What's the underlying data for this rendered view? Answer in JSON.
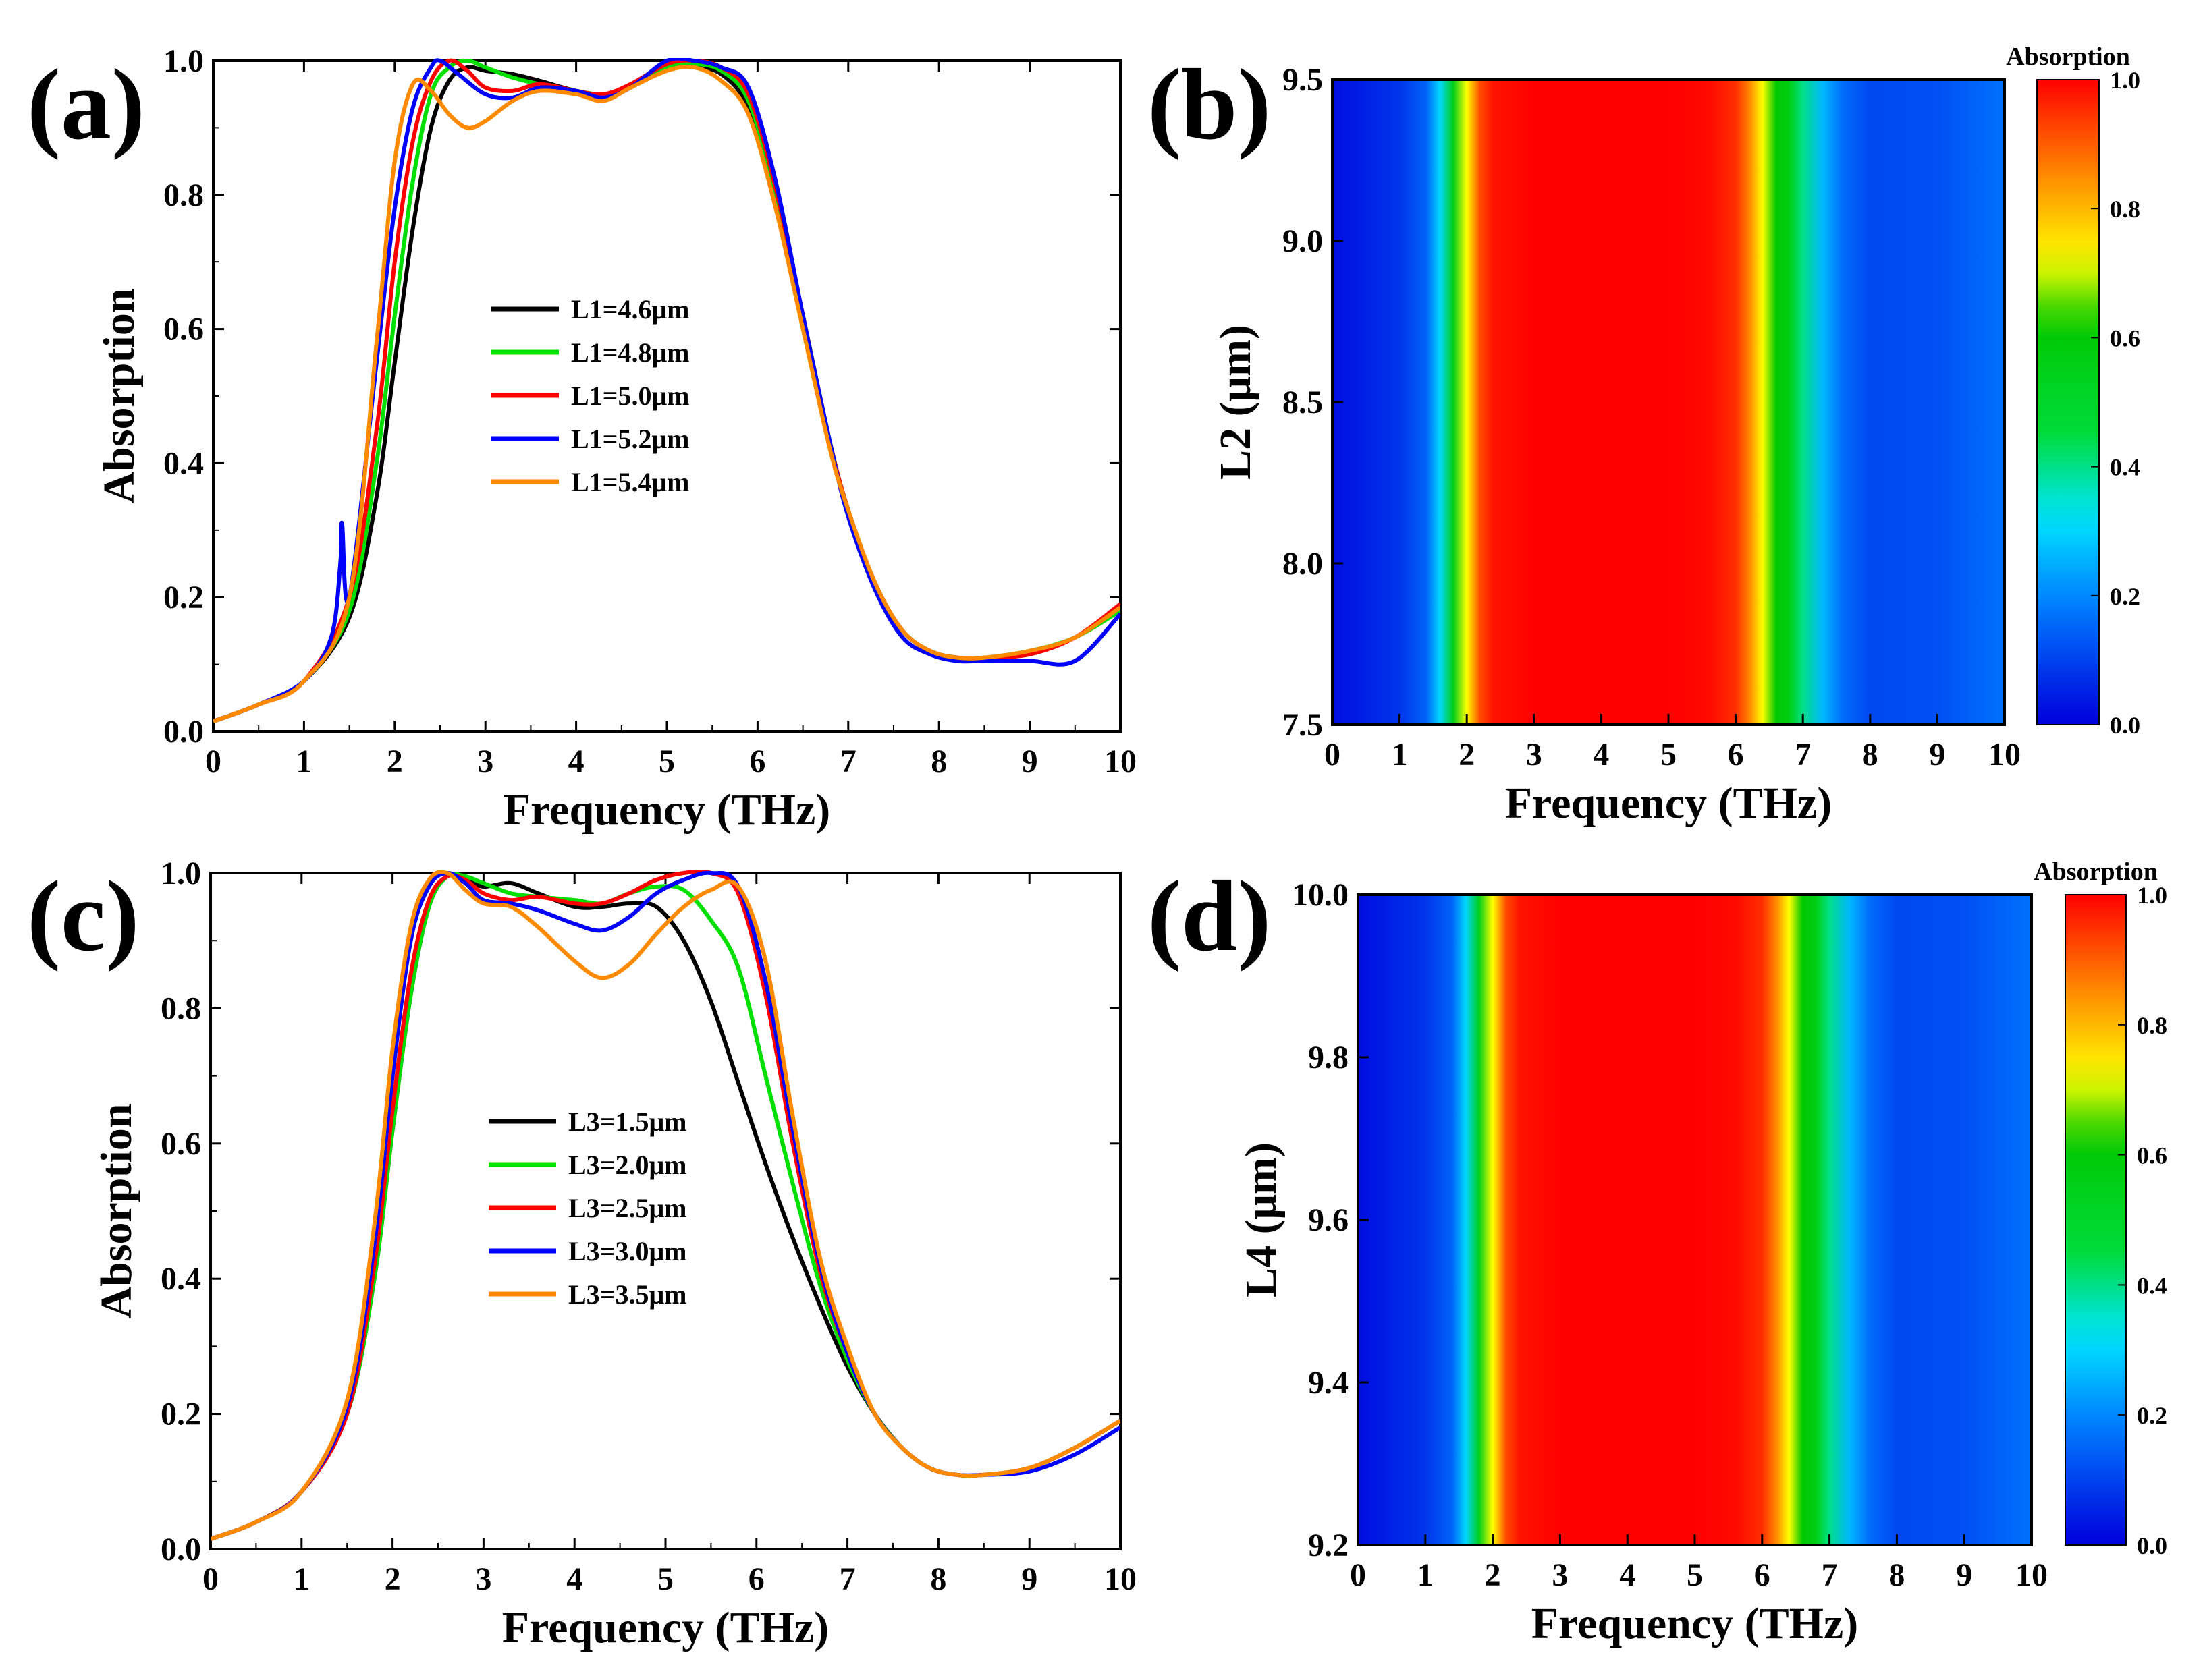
{
  "chart_data": [
    {
      "panel": "(a)",
      "type": "line",
      "xlabel": "Frequency (THz)",
      "ylabel": "Absorption",
      "xlim": [
        0,
        10
      ],
      "ylim": [
        0,
        1
      ],
      "xticks": [
        "0",
        "1",
        "2",
        "3",
        "4",
        "5",
        "6",
        "7",
        "8",
        "9",
        "10"
      ],
      "yticks": [
        "0.0",
        "0.2",
        "0.4",
        "0.6",
        "0.8",
        "1.0"
      ],
      "series": [
        {
          "name": "L1=4.6μm",
          "color": "#000000",
          "x": [
            0,
            0.5,
            1,
            1.5,
            1.8,
            2,
            2.2,
            2.4,
            2.6,
            2.8,
            3,
            3.3,
            3.6,
            4,
            4.3,
            4.6,
            5,
            5.3,
            5.6,
            5.9,
            6.2,
            6.5,
            6.8,
            7,
            7.3,
            7.6,
            7.9,
            8.2,
            8.5,
            9,
            9.5,
            10
          ],
          "y": [
            0.015,
            0.04,
            0.075,
            0.17,
            0.35,
            0.55,
            0.75,
            0.9,
            0.97,
            0.99,
            0.985,
            0.98,
            0.97,
            0.955,
            0.95,
            0.96,
            0.99,
            0.99,
            0.98,
            0.93,
            0.8,
            0.62,
            0.43,
            0.33,
            0.22,
            0.15,
            0.12,
            0.11,
            0.11,
            0.115,
            0.14,
            0.18
          ]
        },
        {
          "name": "L1=4.8μm",
          "color": "#00e000",
          "x": [
            0,
            0.5,
            1,
            1.5,
            1.8,
            2,
            2.2,
            2.4,
            2.6,
            2.8,
            3,
            3.3,
            3.6,
            4,
            4.3,
            4.6,
            5,
            5.3,
            5.6,
            5.9,
            6.2,
            6.5,
            6.8,
            7,
            7.3,
            7.6,
            7.9,
            8.2,
            8.5,
            9,
            9.5,
            10
          ],
          "y": [
            0.015,
            0.04,
            0.075,
            0.18,
            0.4,
            0.62,
            0.82,
            0.95,
            0.99,
            1.0,
            0.99,
            0.975,
            0.965,
            0.955,
            0.95,
            0.96,
            0.99,
            0.995,
            0.985,
            0.94,
            0.8,
            0.62,
            0.43,
            0.33,
            0.22,
            0.15,
            0.12,
            0.11,
            0.11,
            0.12,
            0.14,
            0.18
          ]
        },
        {
          "name": "L1=5.0μm",
          "color": "#ff0000",
          "x": [
            0,
            0.5,
            1,
            1.5,
            1.8,
            2,
            2.2,
            2.4,
            2.6,
            2.8,
            3,
            3.3,
            3.6,
            4,
            4.3,
            4.6,
            5,
            5.3,
            5.6,
            5.9,
            6.2,
            6.5,
            6.8,
            7,
            7.3,
            7.6,
            7.9,
            8.2,
            8.5,
            9,
            9.5,
            10
          ],
          "y": [
            0.015,
            0.04,
            0.075,
            0.2,
            0.45,
            0.7,
            0.88,
            0.97,
            1.0,
            0.985,
            0.96,
            0.955,
            0.965,
            0.955,
            0.95,
            0.965,
            0.995,
            1.0,
            0.99,
            0.95,
            0.81,
            0.62,
            0.43,
            0.33,
            0.22,
            0.15,
            0.12,
            0.11,
            0.11,
            0.115,
            0.14,
            0.19
          ]
        },
        {
          "name": "L1=5.2μm",
          "color": "#0000ff",
          "x": [
            0,
            0.5,
            1,
            1.3,
            1.4,
            1.42,
            1.5,
            1.8,
            2,
            2.2,
            2.4,
            2.5,
            2.7,
            3,
            3.3,
            3.6,
            4,
            4.3,
            4.6,
            5,
            5.3,
            5.6,
            5.9,
            6.2,
            6.5,
            6.8,
            7,
            7.3,
            7.6,
            7.9,
            8.2,
            8.5,
            9,
            9.5,
            10
          ],
          "y": [
            0.015,
            0.04,
            0.075,
            0.14,
            0.25,
            0.31,
            0.2,
            0.55,
            0.78,
            0.93,
            0.99,
            1.0,
            0.98,
            0.95,
            0.945,
            0.96,
            0.955,
            0.945,
            0.96,
            1.0,
            1.0,
            0.99,
            0.96,
            0.82,
            0.62,
            0.43,
            0.32,
            0.21,
            0.14,
            0.115,
            0.105,
            0.105,
            0.105,
            0.105,
            0.175
          ]
        },
        {
          "name": "L1=5.4μm",
          "color": "#ff8a00",
          "x": [
            0,
            0.5,
            1,
            1.5,
            1.8,
            2,
            2.2,
            2.4,
            2.6,
            2.8,
            3,
            3.3,
            3.6,
            4,
            4.3,
            4.6,
            5,
            5.3,
            5.6,
            5.9,
            6.2,
            6.5,
            6.8,
            7,
            7.3,
            7.6,
            7.9,
            8.2,
            8.5,
            9,
            9.5,
            10
          ],
          "y": [
            0.015,
            0.04,
            0.075,
            0.2,
            0.58,
            0.85,
            0.965,
            0.955,
            0.92,
            0.9,
            0.91,
            0.94,
            0.955,
            0.95,
            0.94,
            0.96,
            0.985,
            0.99,
            0.97,
            0.92,
            0.78,
            0.6,
            0.42,
            0.33,
            0.22,
            0.15,
            0.12,
            0.11,
            0.11,
            0.12,
            0.14,
            0.185
          ]
        }
      ],
      "legend_position": "center"
    },
    {
      "panel": "(b)",
      "type": "heatmap",
      "xlabel": "Frequency (THz)",
      "ylabel": "L2 (μm)",
      "xlim": [
        0,
        10
      ],
      "ylim": [
        7.5,
        9.5
      ],
      "xticks": [
        "0",
        "1",
        "2",
        "3",
        "4",
        "5",
        "6",
        "7",
        "8",
        "9",
        "10"
      ],
      "yticks": [
        "7.5",
        "8.0",
        "8.5",
        "9.0",
        "9.5"
      ],
      "profile_x": [
        0,
        0.5,
        1,
        1.4,
        1.6,
        1.8,
        2.0,
        2.2,
        2.4,
        3,
        4,
        5,
        5.6,
        6.0,
        6.2,
        6.4,
        6.6,
        6.8,
        7,
        7.3,
        7.6,
        8,
        9,
        10
      ],
      "profile_absorption": [
        0.02,
        0.05,
        0.08,
        0.15,
        0.3,
        0.55,
        0.72,
        0.92,
        0.98,
        1.0,
        1.0,
        1.0,
        0.99,
        0.95,
        0.86,
        0.72,
        0.62,
        0.56,
        0.4,
        0.26,
        0.16,
        0.11,
        0.12,
        0.17
      ],
      "colorbar": {
        "title": "Absorption",
        "range": [
          0,
          1
        ],
        "ticks": [
          "0.0",
          "0.2",
          "0.4",
          "0.6",
          "0.8",
          "1.0"
        ]
      }
    },
    {
      "panel": "(c)",
      "type": "line",
      "xlabel": "Frequency (THz)",
      "ylabel": "Absorption",
      "xlim": [
        0,
        10
      ],
      "ylim": [
        0,
        1
      ],
      "xticks": [
        "0",
        "1",
        "2",
        "3",
        "4",
        "5",
        "6",
        "7",
        "8",
        "9",
        "10"
      ],
      "yticks": [
        "0.0",
        "0.2",
        "0.4",
        "0.6",
        "0.8",
        "1.0"
      ],
      "series": [
        {
          "name": "L3=1.5μm",
          "color": "#000000",
          "x": [
            0,
            0.5,
            1,
            1.5,
            1.8,
            2,
            2.2,
            2.4,
            2.6,
            2.8,
            3,
            3.3,
            3.6,
            4,
            4.3,
            4.6,
            4.9,
            5.2,
            5.5,
            5.8,
            6.1,
            6.4,
            6.7,
            7,
            7.3,
            7.6,
            7.9,
            8.2,
            8.5,
            9,
            9.5,
            10
          ],
          "y": [
            0.015,
            0.04,
            0.085,
            0.2,
            0.4,
            0.62,
            0.82,
            0.95,
            0.995,
            0.99,
            0.98,
            0.985,
            0.97,
            0.95,
            0.95,
            0.955,
            0.95,
            0.9,
            0.81,
            0.69,
            0.57,
            0.46,
            0.36,
            0.27,
            0.2,
            0.15,
            0.12,
            0.11,
            0.11,
            0.12,
            0.15,
            0.19
          ]
        },
        {
          "name": "L3=2.0μm",
          "color": "#00e000",
          "x": [
            0,
            0.5,
            1,
            1.5,
            1.8,
            2,
            2.2,
            2.4,
            2.6,
            2.8,
            3,
            3.3,
            3.6,
            4,
            4.3,
            4.6,
            4.9,
            5.2,
            5.5,
            5.8,
            6.1,
            6.4,
            6.7,
            7,
            7.3,
            7.6,
            7.9,
            8.2,
            8.5,
            9,
            9.5,
            10
          ],
          "y": [
            0.015,
            0.04,
            0.085,
            0.2,
            0.4,
            0.62,
            0.82,
            0.95,
            0.995,
            0.995,
            0.985,
            0.97,
            0.965,
            0.96,
            0.955,
            0.97,
            0.98,
            0.975,
            0.93,
            0.86,
            0.7,
            0.54,
            0.39,
            0.28,
            0.2,
            0.15,
            0.12,
            0.11,
            0.11,
            0.12,
            0.15,
            0.19
          ]
        },
        {
          "name": "L3=2.5μm",
          "color": "#ff0000",
          "x": [
            0,
            0.5,
            1,
            1.5,
            1.8,
            2,
            2.2,
            2.4,
            2.6,
            2.8,
            3,
            3.3,
            3.6,
            4,
            4.3,
            4.6,
            4.9,
            5.2,
            5.5,
            5.8,
            6.1,
            6.4,
            6.7,
            7,
            7.3,
            7.6,
            7.9,
            8.2,
            8.5,
            9,
            9.5,
            10
          ],
          "y": [
            0.015,
            0.04,
            0.085,
            0.2,
            0.42,
            0.65,
            0.85,
            0.96,
            0.995,
            0.99,
            0.97,
            0.96,
            0.965,
            0.955,
            0.955,
            0.97,
            0.99,
            1.0,
            1.0,
            0.97,
            0.82,
            0.6,
            0.41,
            0.29,
            0.2,
            0.15,
            0.12,
            0.11,
            0.11,
            0.12,
            0.15,
            0.19
          ]
        },
        {
          "name": "L3=3.0μm",
          "color": "#0000ff",
          "x": [
            0,
            0.5,
            1,
            1.5,
            1.8,
            2,
            2.2,
            2.4,
            2.6,
            2.8,
            3,
            3.3,
            3.6,
            4,
            4.3,
            4.6,
            4.9,
            5.2,
            5.5,
            5.8,
            6.1,
            6.4,
            6.7,
            7,
            7.3,
            7.6,
            7.9,
            8.2,
            8.5,
            9,
            9.5,
            10
          ],
          "y": [
            0.015,
            0.04,
            0.085,
            0.21,
            0.45,
            0.7,
            0.9,
            0.98,
            1.0,
            0.985,
            0.96,
            0.955,
            0.945,
            0.925,
            0.915,
            0.935,
            0.97,
            0.99,
            1.0,
            0.98,
            0.84,
            0.62,
            0.42,
            0.29,
            0.2,
            0.15,
            0.12,
            0.11,
            0.11,
            0.115,
            0.14,
            0.18
          ]
        },
        {
          "name": "L3=3.5μm",
          "color": "#ff8a00",
          "x": [
            0,
            0.5,
            1,
            1.5,
            1.8,
            2,
            2.2,
            2.4,
            2.6,
            2.8,
            3,
            3.3,
            3.6,
            4,
            4.3,
            4.6,
            4.9,
            5.2,
            5.5,
            5.8,
            6.1,
            6.4,
            6.7,
            7,
            7.3,
            7.6,
            7.9,
            8.2,
            8.5,
            9,
            9.5,
            10
          ],
          "y": [
            0.015,
            0.04,
            0.085,
            0.22,
            0.48,
            0.74,
            0.92,
            0.99,
            1.0,
            0.975,
            0.955,
            0.95,
            0.92,
            0.87,
            0.845,
            0.865,
            0.91,
            0.95,
            0.975,
            0.98,
            0.87,
            0.64,
            0.43,
            0.3,
            0.2,
            0.15,
            0.12,
            0.11,
            0.11,
            0.12,
            0.15,
            0.19
          ]
        }
      ],
      "legend_position": "center"
    },
    {
      "panel": "(d)",
      "type": "heatmap",
      "xlabel": "Frequency (THz)",
      "ylabel": "L4 (μm)",
      "xlim": [
        0,
        10
      ],
      "ylim": [
        9.2,
        10.0
      ],
      "xticks": [
        "0",
        "1",
        "2",
        "3",
        "4",
        "5",
        "6",
        "7",
        "8",
        "9",
        "10"
      ],
      "yticks": [
        "9.2",
        "9.4",
        "9.6",
        "9.8",
        "10.0"
      ],
      "profile_x": [
        0,
        0.5,
        1,
        1.4,
        1.6,
        1.8,
        2.0,
        2.2,
        2.4,
        3,
        4,
        5,
        5.6,
        6.0,
        6.2,
        6.4,
        6.6,
        6.8,
        7,
        7.3,
        7.6,
        8,
        9,
        10
      ],
      "profile_absorption": [
        0.02,
        0.05,
        0.08,
        0.15,
        0.3,
        0.55,
        0.72,
        0.92,
        0.98,
        1.0,
        1.0,
        1.0,
        0.99,
        0.95,
        0.86,
        0.72,
        0.62,
        0.56,
        0.4,
        0.26,
        0.16,
        0.11,
        0.12,
        0.17
      ],
      "colorbar": {
        "title": "Absorption",
        "range": [
          0,
          1
        ],
        "ticks": [
          "0.0",
          "0.2",
          "0.4",
          "0.6",
          "0.8",
          "1.0"
        ]
      }
    }
  ]
}
